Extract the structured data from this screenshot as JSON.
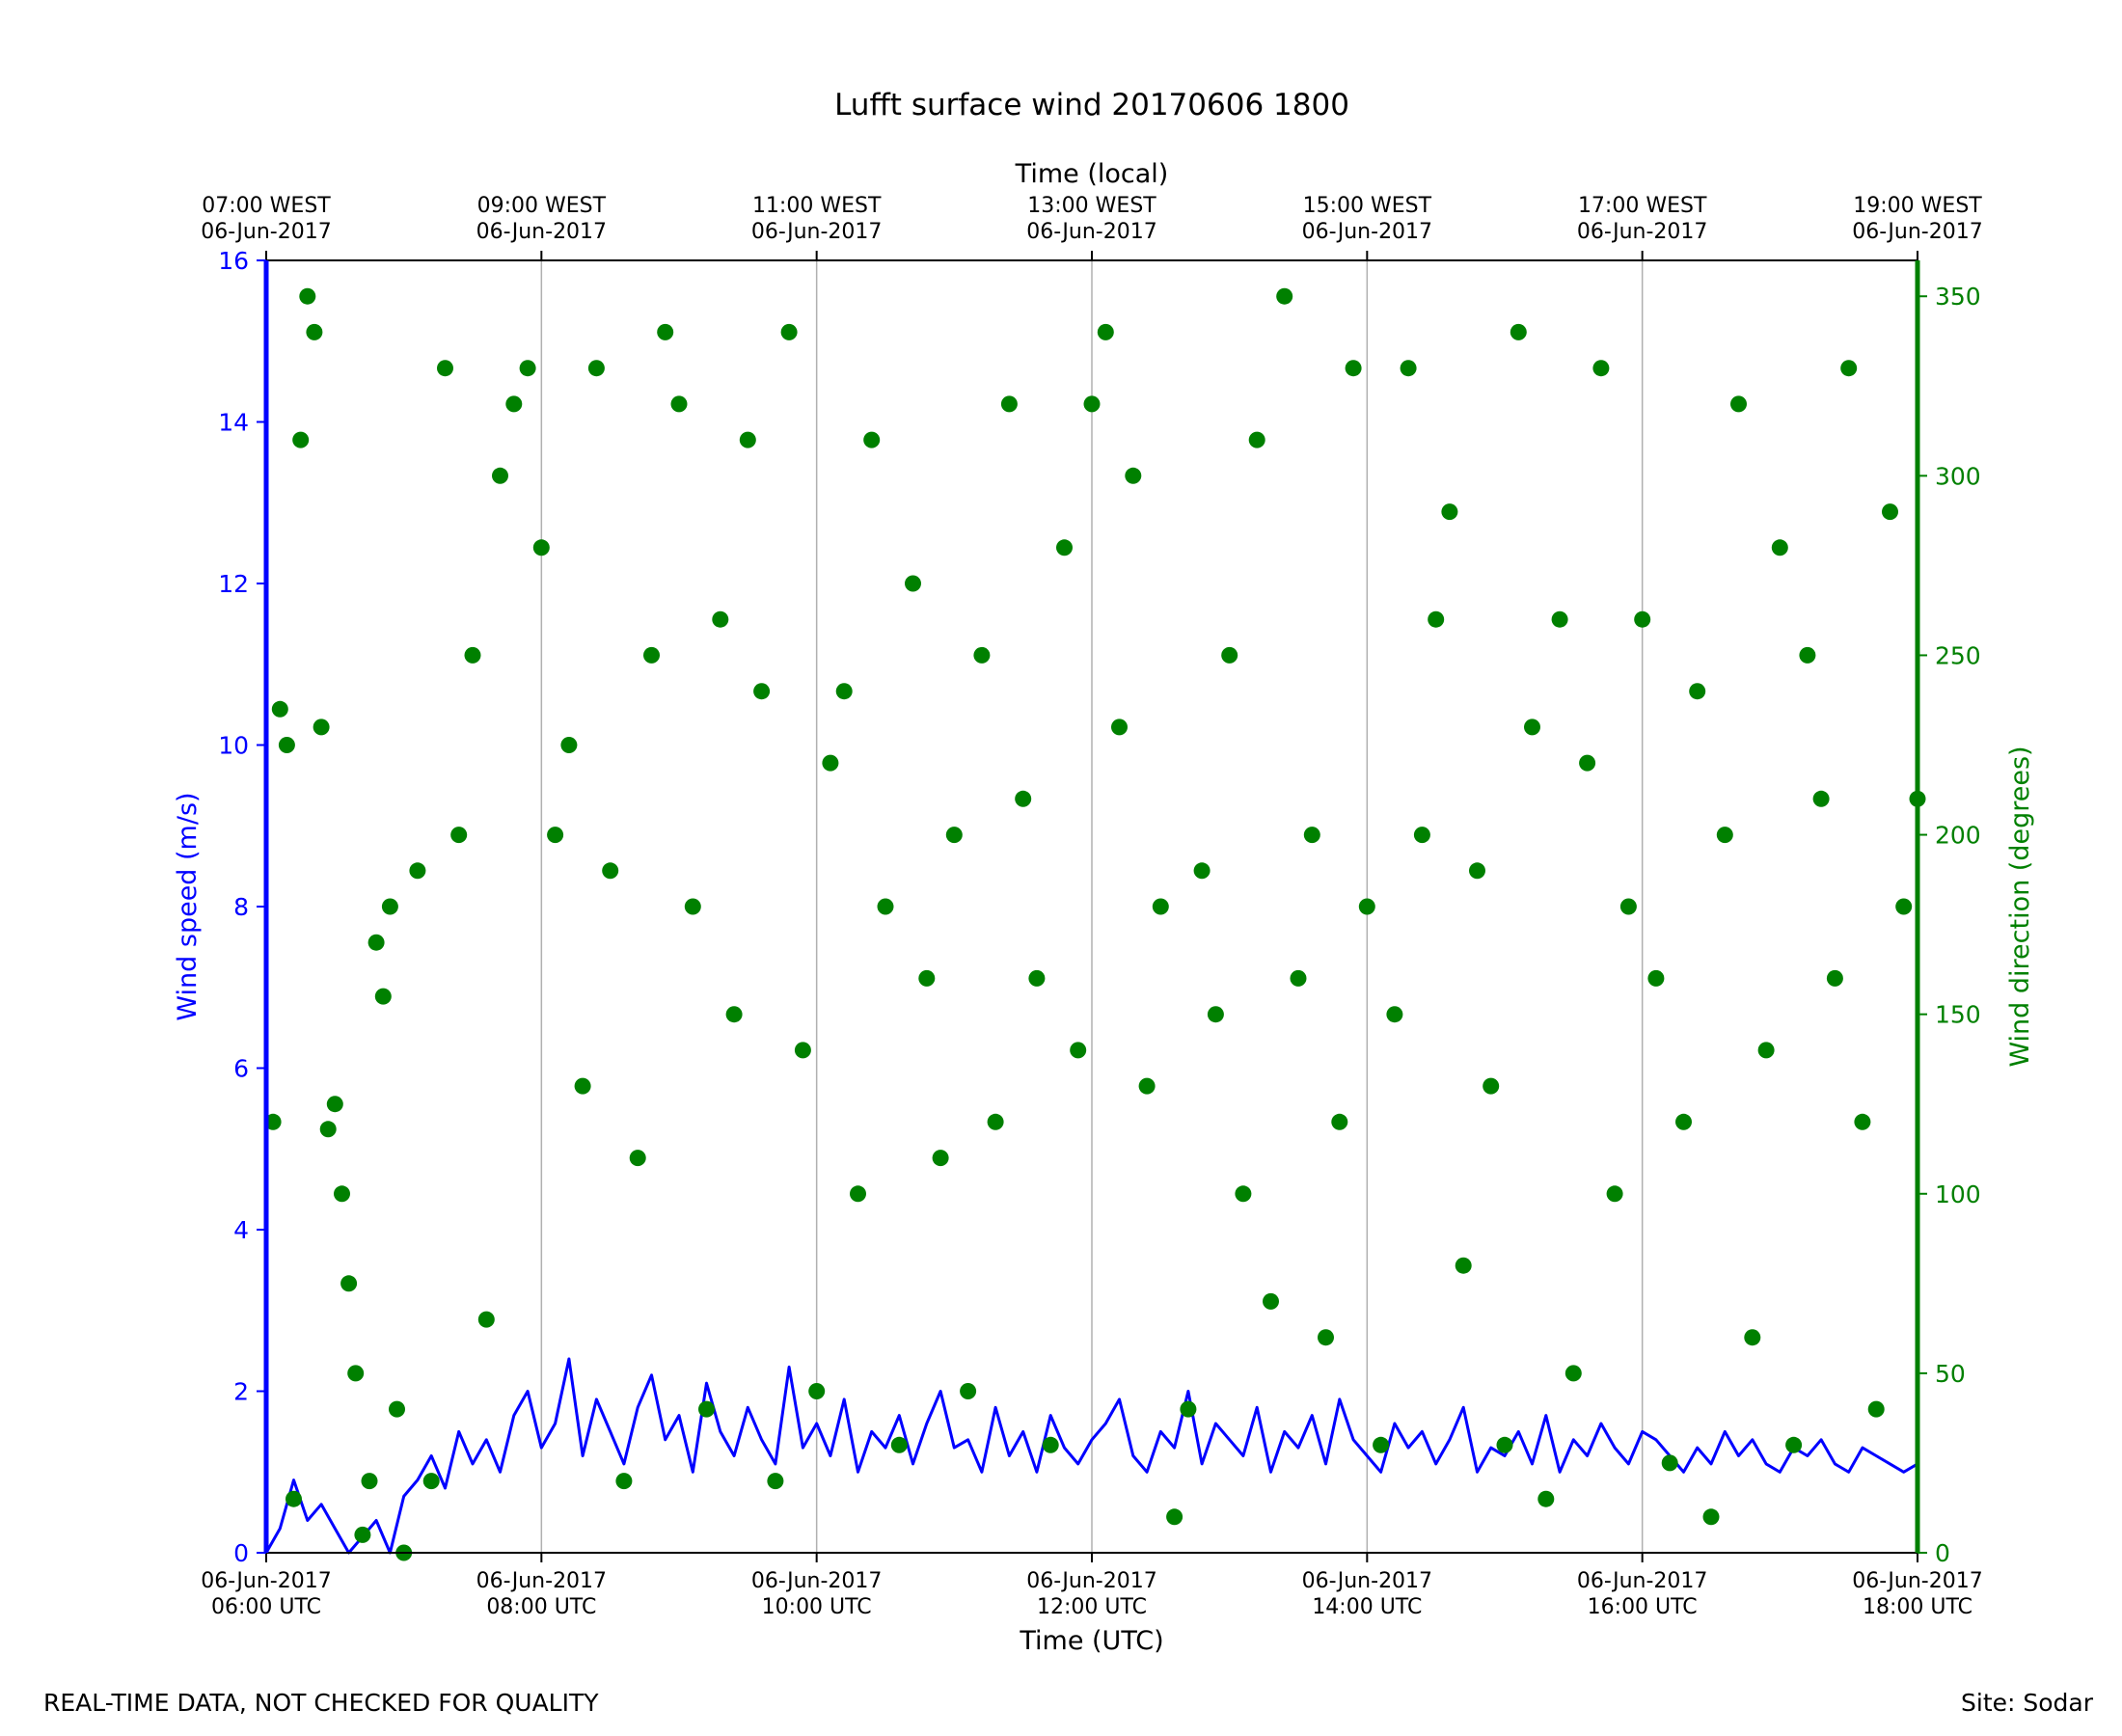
{
  "footer": {
    "left_text": "REAL-TIME DATA, NOT CHECKED FOR QUALITY",
    "right_text": "Site: Sodar"
  },
  "chart_data": {
    "type": "line+scatter",
    "title": "Lufft surface wind 20170606 1800",
    "xlabel_bottom": "Time (UTC)",
    "xlabel_top": "Time (local)",
    "ylabel_left": "Wind speed (m/s)",
    "ylabel_right": "Wind direction (degrees)",
    "xlim_hours_utc": [
      6,
      18
    ],
    "ylim_left": [
      0,
      16
    ],
    "ylim_right": [
      0,
      360
    ],
    "grid": "vertical lines at major x ticks",
    "colors": {
      "speed": "#0000ff",
      "direction": "#008000",
      "grid": "#b0b0b0",
      "axis": "#000000"
    },
    "x_ticks_bottom": [
      {
        "hour": 6,
        "line1": "06-Jun-2017",
        "line2": "06:00 UTC"
      },
      {
        "hour": 8,
        "line1": "06-Jun-2017",
        "line2": "08:00 UTC"
      },
      {
        "hour": 10,
        "line1": "06-Jun-2017",
        "line2": "10:00 UTC"
      },
      {
        "hour": 12,
        "line1": "06-Jun-2017",
        "line2": "12:00 UTC"
      },
      {
        "hour": 14,
        "line1": "06-Jun-2017",
        "line2": "14:00 UTC"
      },
      {
        "hour": 16,
        "line1": "06-Jun-2017",
        "line2": "16:00 UTC"
      },
      {
        "hour": 18,
        "line1": "06-Jun-2017",
        "line2": "18:00 UTC"
      }
    ],
    "x_ticks_top": [
      {
        "hour": 6,
        "line1": "07:00 WEST",
        "line2": "06-Jun-2017"
      },
      {
        "hour": 8,
        "line1": "09:00 WEST",
        "line2": "06-Jun-2017"
      },
      {
        "hour": 10,
        "line1": "11:00 WEST",
        "line2": "06-Jun-2017"
      },
      {
        "hour": 12,
        "line1": "13:00 WEST",
        "line2": "06-Jun-2017"
      },
      {
        "hour": 14,
        "line1": "15:00 WEST",
        "line2": "06-Jun-2017"
      },
      {
        "hour": 16,
        "line1": "17:00 WEST",
        "line2": "06-Jun-2017"
      },
      {
        "hour": 18,
        "line1": "19:00 WEST",
        "line2": "06-Jun-2017"
      }
    ],
    "y_ticks_left": [
      0,
      2,
      4,
      6,
      8,
      10,
      12,
      14,
      16
    ],
    "y_ticks_right": [
      0,
      50,
      100,
      150,
      200,
      250,
      300,
      350
    ],
    "speed_series": {
      "name": "Wind speed (m/s)",
      "x_hours": [
        6.0,
        6.1,
        6.2,
        6.3,
        6.4,
        6.5,
        6.6,
        6.7,
        6.8,
        6.9,
        7.0,
        7.1,
        7.2,
        7.3,
        7.4,
        7.5,
        7.6,
        7.7,
        7.8,
        7.9,
        8.0,
        8.1,
        8.2,
        8.3,
        8.4,
        8.5,
        8.6,
        8.7,
        8.8,
        8.9,
        9.0,
        9.1,
        9.2,
        9.3,
        9.4,
        9.5,
        9.6,
        9.7,
        9.8,
        9.9,
        10.0,
        10.1,
        10.2,
        10.3,
        10.4,
        10.5,
        10.6,
        10.7,
        10.8,
        10.9,
        11.0,
        11.1,
        11.2,
        11.3,
        11.4,
        11.5,
        11.6,
        11.7,
        11.8,
        11.9,
        12.0,
        12.1,
        12.2,
        12.3,
        12.4,
        12.5,
        12.6,
        12.7,
        12.8,
        12.9,
        13.0,
        13.1,
        13.2,
        13.3,
        13.4,
        13.5,
        13.6,
        13.7,
        13.8,
        13.9,
        14.0,
        14.1,
        14.2,
        14.3,
        14.4,
        14.5,
        14.6,
        14.7,
        14.8,
        14.9,
        15.0,
        15.1,
        15.2,
        15.3,
        15.4,
        15.5,
        15.6,
        15.7,
        15.8,
        15.9,
        16.0,
        16.1,
        16.2,
        16.3,
        16.4,
        16.5,
        16.6,
        16.7,
        16.8,
        16.9,
        17.0,
        17.1,
        17.2,
        17.3,
        17.4,
        17.5,
        17.6,
        17.7,
        17.8,
        17.9,
        18.0
      ],
      "values": [
        0.0,
        0.3,
        0.9,
        0.4,
        0.6,
        0.3,
        0.0,
        0.2,
        0.4,
        0.0,
        0.7,
        0.9,
        1.2,
        0.8,
        1.5,
        1.1,
        1.4,
        1.0,
        1.7,
        2.0,
        1.3,
        1.6,
        2.4,
        1.2,
        1.9,
        1.5,
        1.1,
        1.8,
        2.2,
        1.4,
        1.7,
        1.0,
        2.1,
        1.5,
        1.2,
        1.8,
        1.4,
        1.1,
        2.3,
        1.3,
        1.6,
        1.2,
        1.9,
        1.0,
        1.5,
        1.3,
        1.7,
        1.1,
        1.6,
        2.0,
        1.3,
        1.4,
        1.0,
        1.8,
        1.2,
        1.5,
        1.0,
        1.7,
        1.3,
        1.1,
        1.4,
        1.6,
        1.9,
        1.2,
        1.0,
        1.5,
        1.3,
        2.0,
        1.1,
        1.6,
        1.4,
        1.2,
        1.8,
        1.0,
        1.5,
        1.3,
        1.7,
        1.1,
        1.9,
        1.4,
        1.2,
        1.0,
        1.6,
        1.3,
        1.5,
        1.1,
        1.4,
        1.8,
        1.0,
        1.3,
        1.2,
        1.5,
        1.1,
        1.7,
        1.0,
        1.4,
        1.2,
        1.6,
        1.3,
        1.1,
        1.5,
        1.4,
        1.2,
        1.0,
        1.3,
        1.1,
        1.5,
        1.2,
        1.4,
        1.1,
        1.0,
        1.3,
        1.2,
        1.4,
        1.1,
        1.0,
        1.3,
        1.2,
        1.1,
        1.0,
        1.1
      ]
    },
    "direction_series": {
      "name": "Wind direction (degrees)",
      "points": [
        [
          6.05,
          120
        ],
        [
          6.1,
          235
        ],
        [
          6.15,
          225
        ],
        [
          6.2,
          15
        ],
        [
          6.25,
          310
        ],
        [
          6.3,
          350
        ],
        [
          6.35,
          340
        ],
        [
          6.4,
          230
        ],
        [
          6.45,
          118
        ],
        [
          6.5,
          125
        ],
        [
          6.55,
          100
        ],
        [
          6.6,
          75
        ],
        [
          6.65,
          50
        ],
        [
          6.7,
          5
        ],
        [
          6.75,
          20
        ],
        [
          6.8,
          170
        ],
        [
          6.85,
          155
        ],
        [
          6.9,
          180
        ],
        [
          6.95,
          40
        ],
        [
          7.0,
          0
        ],
        [
          7.1,
          190
        ],
        [
          7.2,
          20
        ],
        [
          7.3,
          330
        ],
        [
          7.4,
          200
        ],
        [
          7.5,
          250
        ],
        [
          7.6,
          65
        ],
        [
          7.7,
          300
        ],
        [
          7.8,
          320
        ],
        [
          7.9,
          330
        ],
        [
          8.0,
          280
        ],
        [
          8.1,
          200
        ],
        [
          8.2,
          225
        ],
        [
          8.3,
          130
        ],
        [
          8.4,
          330
        ],
        [
          8.5,
          190
        ],
        [
          8.6,
          20
        ],
        [
          8.7,
          110
        ],
        [
          8.8,
          250
        ],
        [
          8.9,
          340
        ],
        [
          9.0,
          320
        ],
        [
          9.1,
          180
        ],
        [
          9.2,
          40
        ],
        [
          9.3,
          260
        ],
        [
          9.4,
          150
        ],
        [
          9.5,
          310
        ],
        [
          9.6,
          240
        ],
        [
          9.7,
          20
        ],
        [
          9.8,
          340
        ],
        [
          9.9,
          140
        ],
        [
          10.0,
          45
        ],
        [
          10.1,
          220
        ],
        [
          10.2,
          240
        ],
        [
          10.3,
          100
        ],
        [
          10.4,
          310
        ],
        [
          10.5,
          180
        ],
        [
          10.6,
          30
        ],
        [
          10.7,
          270
        ],
        [
          10.8,
          160
        ],
        [
          10.9,
          110
        ],
        [
          11.0,
          200
        ],
        [
          11.1,
          45
        ],
        [
          11.2,
          250
        ],
        [
          11.3,
          120
        ],
        [
          11.4,
          320
        ],
        [
          11.5,
          210
        ],
        [
          11.6,
          160
        ],
        [
          11.7,
          30
        ],
        [
          11.8,
          280
        ],
        [
          11.9,
          140
        ],
        [
          12.0,
          320
        ],
        [
          12.1,
          340
        ],
        [
          12.2,
          230
        ],
        [
          12.3,
          300
        ],
        [
          12.4,
          130
        ],
        [
          12.5,
          180
        ],
        [
          12.6,
          10
        ],
        [
          12.7,
          40
        ],
        [
          12.8,
          190
        ],
        [
          12.9,
          150
        ],
        [
          13.0,
          250
        ],
        [
          13.1,
          100
        ],
        [
          13.2,
          310
        ],
        [
          13.3,
          70
        ],
        [
          13.4,
          350
        ],
        [
          13.5,
          160
        ],
        [
          13.6,
          200
        ],
        [
          13.7,
          60
        ],
        [
          13.8,
          120
        ],
        [
          13.9,
          330
        ],
        [
          14.0,
          180
        ],
        [
          14.1,
          30
        ],
        [
          14.2,
          150
        ],
        [
          14.3,
          330
        ],
        [
          14.4,
          200
        ],
        [
          14.5,
          260
        ],
        [
          14.6,
          290
        ],
        [
          14.7,
          80
        ],
        [
          14.8,
          190
        ],
        [
          14.9,
          130
        ],
        [
          15.0,
          30
        ],
        [
          15.1,
          340
        ],
        [
          15.2,
          230
        ],
        [
          15.3,
          15
        ],
        [
          15.4,
          260
        ],
        [
          15.5,
          50
        ],
        [
          15.6,
          220
        ],
        [
          15.7,
          330
        ],
        [
          15.8,
          100
        ],
        [
          15.9,
          180
        ],
        [
          16.0,
          260
        ],
        [
          16.1,
          160
        ],
        [
          16.2,
          25
        ],
        [
          16.3,
          120
        ],
        [
          16.4,
          240
        ],
        [
          16.5,
          10
        ],
        [
          16.6,
          200
        ],
        [
          16.7,
          320
        ],
        [
          16.8,
          60
        ],
        [
          16.9,
          140
        ],
        [
          17.0,
          280
        ],
        [
          17.1,
          30
        ],
        [
          17.2,
          250
        ],
        [
          17.3,
          210
        ],
        [
          17.4,
          160
        ],
        [
          17.5,
          330
        ],
        [
          17.6,
          120
        ],
        [
          17.7,
          40
        ],
        [
          17.8,
          290
        ],
        [
          17.9,
          180
        ],
        [
          18.0,
          210
        ]
      ]
    }
  }
}
